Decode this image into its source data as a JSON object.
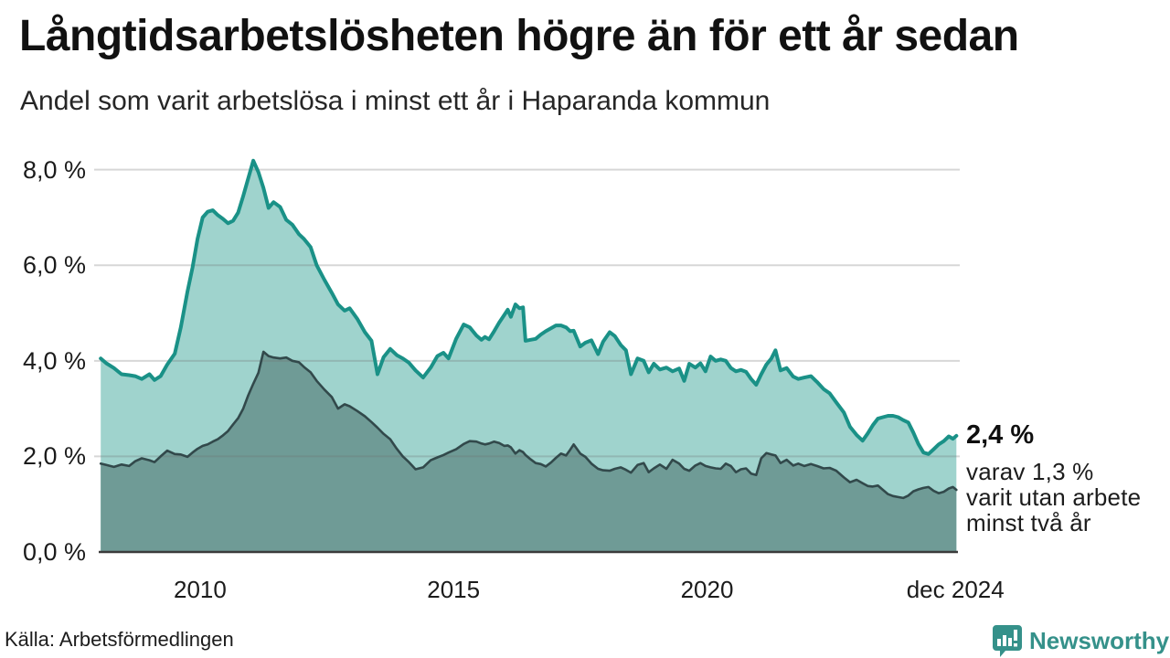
{
  "header": {
    "title": "Långtidsarbetslösheten högre än för ett år sedan",
    "subtitle": "Andel som varit arbetslösa i minst ett år i Haparanda kommun"
  },
  "annotation": {
    "value_label": "2,4 %",
    "detail_lines": [
      "varav 1,3 %",
      "varit utan arbete",
      "minst två år"
    ]
  },
  "footer": {
    "source": "Källa: Arbetsförmedlingen",
    "brand": "Newsworthy",
    "brand_icon": "newsworthy-speech-bubble-bar-chart-icon"
  },
  "colors": {
    "total_line": "#1a9187",
    "total_fill": "#9fd3cd",
    "two_year_line": "#32494b",
    "two_year_fill": "#6f9b96",
    "grid": "#d9d9d9",
    "axis": "#3b3b3b",
    "brand": "#35918a",
    "text": "#1b1b1b"
  },
  "chart_data": {
    "type": "area",
    "title": "Långtidsarbetslösheten högre än för ett år sedan",
    "subtitle": "Andel som varit arbetslösa i minst ett år i Haparanda kommun",
    "xlabel": "",
    "ylabel": "",
    "grid": "horizontal",
    "legend": "none",
    "xlim": [
      2008.0,
      2024.95
    ],
    "ylim": [
      0,
      8.3
    ],
    "x_ticks": [
      {
        "label": "2010",
        "x": 2010
      },
      {
        "label": "2015",
        "x": 2015
      },
      {
        "label": "2020",
        "x": 2020
      },
      {
        "label": "dec 2024",
        "x": 2024.9
      }
    ],
    "y_ticks": [
      {
        "label": "0,0 %",
        "value": 0
      },
      {
        "label": "2,0 %",
        "value": 2
      },
      {
        "label": "4,0 %",
        "value": 4
      },
      {
        "label": "6,0 %",
        "value": 6
      },
      {
        "label": "8,0 %",
        "value": 8
      }
    ],
    "x": [
      2008.04,
      2008.15,
      2008.3,
      2008.45,
      2008.6,
      2008.72,
      2008.85,
      2009.0,
      2009.1,
      2009.22,
      2009.35,
      2009.5,
      2009.62,
      2009.75,
      2009.85,
      2009.95,
      2010.05,
      2010.15,
      2010.25,
      2010.35,
      2010.45,
      2010.55,
      2010.65,
      2010.75,
      2010.85,
      2010.95,
      2011.05,
      2011.15,
      2011.25,
      2011.35,
      2011.45,
      2011.58,
      2011.7,
      2011.82,
      2011.95,
      2012.05,
      2012.18,
      2012.3,
      2012.45,
      2012.6,
      2012.72,
      2012.85,
      2012.95,
      2013.1,
      2013.25,
      2013.38,
      2013.5,
      2013.62,
      2013.75,
      2013.88,
      2014.0,
      2014.12,
      2014.25,
      2014.4,
      2014.55,
      2014.68,
      2014.8,
      2014.9,
      2015.05,
      2015.2,
      2015.32,
      2015.45,
      2015.55,
      2015.62,
      2015.7,
      2015.8,
      2015.9,
      2016.0,
      2016.07,
      2016.13,
      2016.22,
      2016.3,
      2016.37,
      2016.42,
      2016.52,
      2016.62,
      2016.72,
      2016.82,
      2016.92,
      2017.02,
      2017.12,
      2017.22,
      2017.3,
      2017.37,
      2017.5,
      2017.6,
      2017.72,
      2017.85,
      2017.95,
      2018.08,
      2018.18,
      2018.3,
      2018.4,
      2018.5,
      2018.63,
      2018.75,
      2018.85,
      2018.95,
      2019.07,
      2019.2,
      2019.32,
      2019.45,
      2019.55,
      2019.65,
      2019.77,
      2019.87,
      2019.97,
      2020.07,
      2020.17,
      2020.27,
      2020.37,
      2020.47,
      2020.57,
      2020.67,
      2020.77,
      2020.87,
      2020.97,
      2021.07,
      2021.17,
      2021.27,
      2021.35,
      2021.45,
      2021.57,
      2021.7,
      2021.8,
      2021.92,
      2022.05,
      2022.17,
      2022.3,
      2022.42,
      2022.55,
      2022.7,
      2022.82,
      2022.95,
      2023.07,
      2023.17,
      2023.27,
      2023.37,
      2023.47,
      2023.57,
      2023.67,
      2023.77,
      2023.87,
      2023.97,
      2024.07,
      2024.17,
      2024.27,
      2024.37,
      2024.47,
      2024.57,
      2024.67,
      2024.77,
      2024.85,
      2024.92
    ],
    "series": [
      {
        "name": "Arbetslösa minst ett år",
        "end_value_label": "2,4 %",
        "values": [
          4.05,
          3.95,
          3.85,
          3.72,
          3.7,
          3.68,
          3.62,
          3.72,
          3.6,
          3.68,
          3.92,
          4.15,
          4.7,
          5.45,
          5.95,
          6.55,
          7.0,
          7.12,
          7.15,
          7.05,
          6.97,
          6.88,
          6.93,
          7.1,
          7.45,
          7.82,
          8.19,
          7.95,
          7.62,
          7.2,
          7.32,
          7.22,
          6.95,
          6.85,
          6.65,
          6.55,
          6.38,
          6.0,
          5.7,
          5.42,
          5.18,
          5.05,
          5.1,
          4.88,
          4.6,
          4.42,
          3.72,
          4.08,
          4.25,
          4.12,
          4.05,
          3.96,
          3.8,
          3.65,
          3.86,
          4.1,
          4.17,
          4.05,
          4.46,
          4.76,
          4.7,
          4.53,
          4.44,
          4.5,
          4.45,
          4.62,
          4.8,
          4.96,
          5.07,
          4.92,
          5.18,
          5.1,
          5.12,
          4.42,
          4.44,
          4.46,
          4.55,
          4.62,
          4.68,
          4.74,
          4.74,
          4.7,
          4.62,
          4.63,
          4.3,
          4.38,
          4.43,
          4.14,
          4.4,
          4.6,
          4.52,
          4.33,
          4.22,
          3.72,
          4.05,
          4.0,
          3.76,
          3.94,
          3.82,
          3.86,
          3.78,
          3.84,
          3.58,
          3.94,
          3.86,
          3.95,
          3.78,
          4.09,
          4.0,
          4.03,
          4.0,
          3.85,
          3.78,
          3.81,
          3.77,
          3.62,
          3.5,
          3.72,
          3.92,
          4.05,
          4.22,
          3.8,
          3.85,
          3.67,
          3.62,
          3.65,
          3.68,
          3.56,
          3.41,
          3.32,
          3.13,
          2.92,
          2.62,
          2.45,
          2.33,
          2.48,
          2.65,
          2.79,
          2.82,
          2.85,
          2.85,
          2.82,
          2.76,
          2.71,
          2.5,
          2.26,
          2.08,
          2.05,
          2.15,
          2.25,
          2.32,
          2.42,
          2.37,
          2.43
        ]
      },
      {
        "name": "Arbetslösa minst två år",
        "end_value_label": "1,3 %",
        "values": [
          1.85,
          1.82,
          1.78,
          1.83,
          1.8,
          1.9,
          1.96,
          1.92,
          1.88,
          2.0,
          2.12,
          2.05,
          2.04,
          1.99,
          2.08,
          2.16,
          2.22,
          2.25,
          2.31,
          2.36,
          2.44,
          2.53,
          2.67,
          2.8,
          3.0,
          3.28,
          3.52,
          3.75,
          4.19,
          4.1,
          4.07,
          4.05,
          4.07,
          4.0,
          3.97,
          3.87,
          3.76,
          3.58,
          3.4,
          3.24,
          3.0,
          3.09,
          3.05,
          2.95,
          2.84,
          2.72,
          2.6,
          2.47,
          2.36,
          2.16,
          2.0,
          1.88,
          1.73,
          1.77,
          1.92,
          1.98,
          2.03,
          2.08,
          2.15,
          2.26,
          2.32,
          2.31,
          2.27,
          2.25,
          2.27,
          2.31,
          2.28,
          2.22,
          2.23,
          2.19,
          2.06,
          2.13,
          2.09,
          2.03,
          1.94,
          1.86,
          1.84,
          1.79,
          1.87,
          1.97,
          2.06,
          2.02,
          2.14,
          2.25,
          2.06,
          1.99,
          1.85,
          1.74,
          1.71,
          1.7,
          1.74,
          1.77,
          1.72,
          1.66,
          1.82,
          1.86,
          1.67,
          1.75,
          1.83,
          1.74,
          1.93,
          1.85,
          1.74,
          1.7,
          1.81,
          1.86,
          1.8,
          1.77,
          1.75,
          1.74,
          1.85,
          1.8,
          1.67,
          1.73,
          1.75,
          1.64,
          1.61,
          1.96,
          2.07,
          2.04,
          2.02,
          1.86,
          1.93,
          1.81,
          1.85,
          1.8,
          1.84,
          1.8,
          1.75,
          1.76,
          1.7,
          1.56,
          1.46,
          1.51,
          1.44,
          1.38,
          1.37,
          1.39,
          1.3,
          1.21,
          1.17,
          1.15,
          1.13,
          1.18,
          1.27,
          1.31,
          1.34,
          1.36,
          1.28,
          1.23,
          1.26,
          1.33,
          1.36,
          1.3
        ]
      }
    ]
  }
}
